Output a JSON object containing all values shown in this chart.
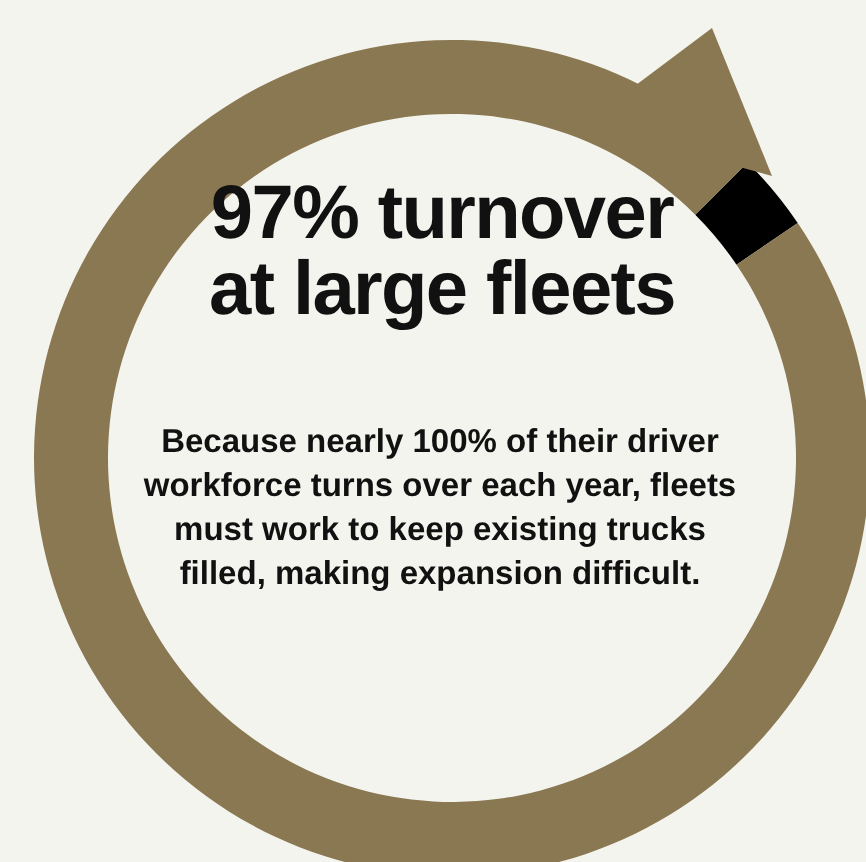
{
  "chart_data": {
    "type": "donut",
    "title": "97% turnover at large fleets",
    "annotations": [
      "Because nearly 100% of their driver workforce turns over each year, fleets must work to keep existing trucks filled, making expansion difficult."
    ],
    "categories": [
      null,
      null
    ],
    "values": [
      3,
      97
    ],
    "colors": [
      "#000000",
      "#8a7852"
    ]
  }
}
